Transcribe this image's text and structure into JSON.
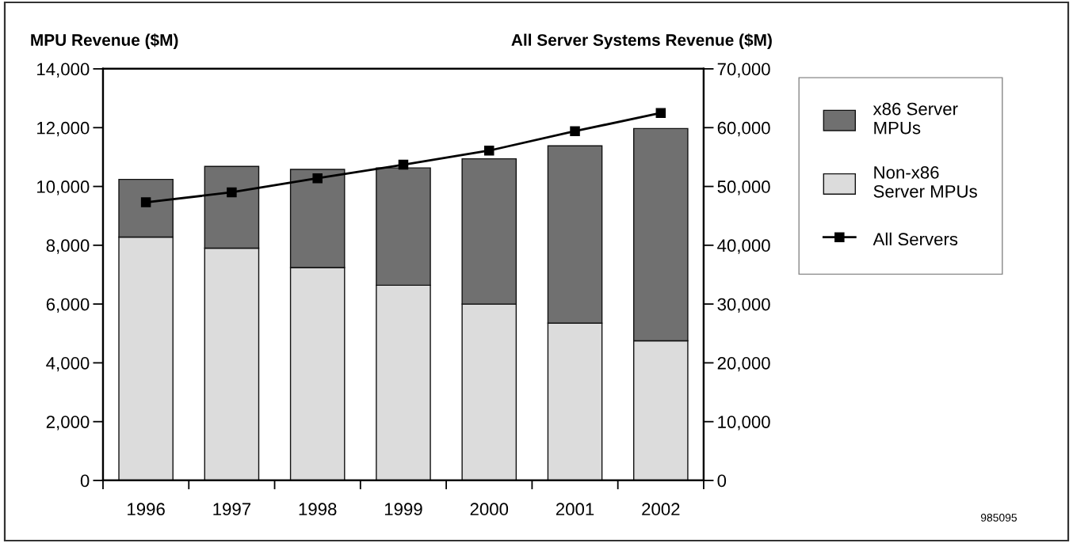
{
  "chart_data": {
    "type": "bar",
    "stacked": true,
    "ylabel": "MPU Revenue ($M)",
    "y2label": "All Server Systems Revenue ($M)",
    "categories": [
      "1996",
      "1997",
      "1998",
      "1999",
      "2000",
      "2001",
      "2002"
    ],
    "series": [
      {
        "name": "Non-x86\nServer MPUs",
        "color": "#dcdcdc",
        "values": [
          8280,
          7900,
          7240,
          6640,
          6000,
          5350,
          4750
        ]
      },
      {
        "name": "x86 Server\nMPUs",
        "color": "#707070",
        "values": [
          1960,
          2780,
          3340,
          3990,
          4940,
          6030,
          7220
        ]
      },
      {
        "name": "All Servers",
        "type": "line",
        "axis": "y2",
        "color": "#000000",
        "values": [
          47300,
          49000,
          51400,
          53700,
          56100,
          59400,
          62500
        ]
      }
    ],
    "marker": "square",
    "line_style": "solid",
    "ylim": [
      0,
      14000
    ],
    "yticks": [
      0,
      {
        "value": 2000,
        "label": "2,000"
      },
      {
        "value": 4000,
        "label": "4,000"
      },
      {
        "value": 6000,
        "label": "6,000"
      },
      {
        "value": 8000,
        "label": "8,000"
      },
      {
        "value": 10000,
        "label": "10,000"
      },
      {
        "value": 12000,
        "label": "12,000"
      },
      {
        "value": 14000,
        "label": "14,000"
      }
    ],
    "y2lim": [
      0,
      70000
    ],
    "y2ticks": [
      0,
      {
        "value": 10000,
        "label": "10,000"
      },
      {
        "value": 20000,
        "label": "20,000"
      },
      {
        "value": 30000,
        "label": "30,000"
      },
      {
        "value": 40000,
        "label": "40,000"
      },
      {
        "value": 50000,
        "label": "50,000"
      },
      {
        "value": 60000,
        "label": "60,000"
      },
      {
        "value": 70000,
        "label": "70,000"
      }
    ],
    "legend": "right",
    "grid": false,
    "annotations": [
      "985095"
    ]
  }
}
